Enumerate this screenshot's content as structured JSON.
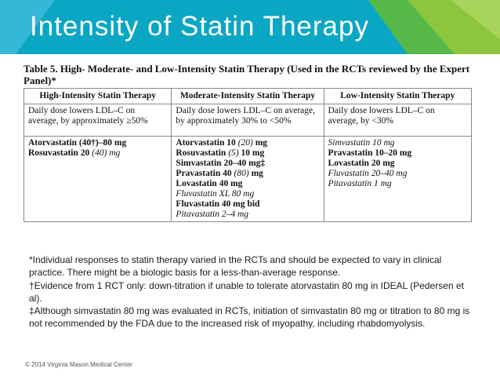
{
  "slide": {
    "title": "Intensity of Statin Therapy",
    "copyright": "© 2014 Virginia Mason Medical Center",
    "colors": {
      "header_blue": "#0aa7c4",
      "header_green": "#8cc63f",
      "accent_light_blue": "#5fc6e0"
    }
  },
  "table": {
    "caption": "Table 5. High- Moderate- and Low-Intensity Statin Therapy (Used in the RCTs reviewed by the Expert Panel)*",
    "headers": [
      "High-Intensity Statin Therapy",
      "Moderate-Intensity Statin Therapy",
      "Low-Intensity Statin Therapy"
    ],
    "ldl": {
      "high": "Daily dose lowers LDL–C on average, by approximately ≥50%",
      "moderate": "Daily dose lowers LDL–C on average, by approximately 30% to <50%",
      "low": "Daily dose lowers LDL–C on average, by <30%"
    },
    "high": [
      {
        "a": "Atorvastatin (40†)–80 mg",
        "b": ""
      },
      {
        "a": "Rosuvastatin 20 ",
        "b": "(40) mg",
        "c": ""
      }
    ],
    "moderate": [
      {
        "a": "Atorvastatin 10 ",
        "b": "(20)",
        "c": " mg"
      },
      {
        "a": "Rosuvastatin ",
        "b": "(5)",
        "c": " 10 mg"
      },
      {
        "a": "Simvastatin 20–40 mg‡",
        "b": "",
        "c": ""
      },
      {
        "a": "Pravastatin 40 ",
        "b": "(80)",
        "c": " mg"
      },
      {
        "a": "Lovastatin 40 mg",
        "b": "",
        "c": ""
      },
      {
        "a": "",
        "b": "Fluvastatin XL 80 mg",
        "c": ""
      },
      {
        "a": "Fluvastatin 40 mg bid",
        "b": "",
        "c": ""
      },
      {
        "a": "",
        "b": "Pitavastatin 2–4 mg",
        "c": ""
      }
    ],
    "low": [
      {
        "a": "",
        "b": "Simvastatin 10 mg"
      },
      {
        "a": "Pravastatin 10–20 mg",
        "b": ""
      },
      {
        "a": "Lovastatin 20 mg",
        "b": ""
      },
      {
        "a": "",
        "b": "Fluvastatin 20–40 mg"
      },
      {
        "a": "",
        "b": "Pitavastatin 1 mg"
      }
    ]
  },
  "footnotes": [
    "*Individual responses to statin therapy varied in the RCTs and should be expected to vary in clinical practice. There might be a biologic basis for a less-than-average response.",
    "†Evidence from 1 RCT only: down-titration if unable to tolerate atorvastatin 80 mg in IDEAL (Pedersen et al).",
    "‡Although simvastatin 80 mg was evaluated in RCTs, initiation of simvastatin 80 mg or titration to 80 mg is not recommended by the FDA due to the increased risk of myopathy, including rhabdomyolysis."
  ]
}
